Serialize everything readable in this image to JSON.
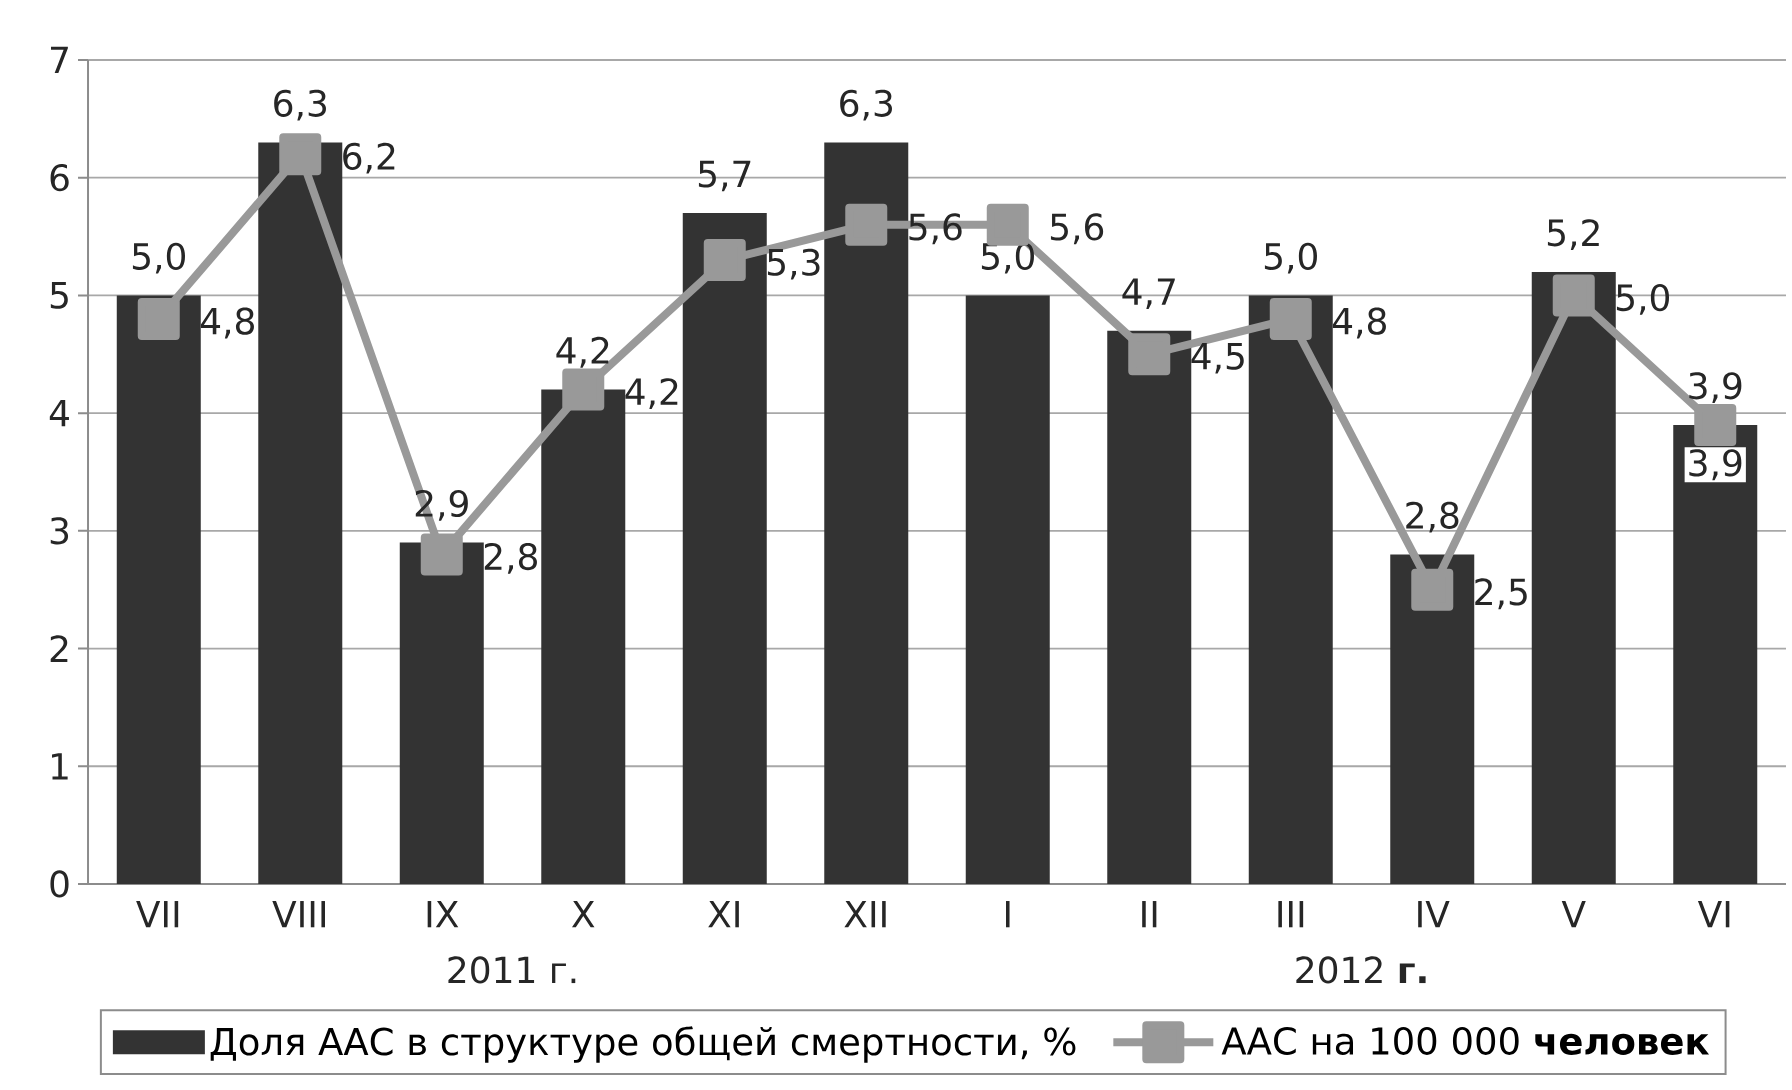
{
  "chart_data": {
    "type": "bar",
    "categories": [
      "VII",
      "VIII",
      "IX",
      "X",
      "XI",
      "XII",
      "I",
      "II",
      "III",
      "IV",
      "V",
      "VI"
    ],
    "series": [
      {
        "name": "Доля ААС в структуре общей смертности, %",
        "color": "#333333",
        "values": [
          5.0,
          6.3,
          2.9,
          4.2,
          5.7,
          6.3,
          5.0,
          4.7,
          5.0,
          2.8,
          5.2,
          3.9
        ],
        "value_labels": [
          "5,0",
          "6,3",
          "2,9",
          "4,2",
          "5,7",
          "6,3",
          "5,0",
          "4,7",
          "5,0",
          "2,8",
          "5,2",
          "3,9"
        ]
      },
      {
        "name": "ААС на 100 000 **человек**",
        "type": "line",
        "color": "#999999",
        "values": [
          4.8,
          6.2,
          2.8,
          4.2,
          5.3,
          5.6,
          5.6,
          4.5,
          4.8,
          2.5,
          5.0,
          3.9
        ],
        "value_labels": [
          "4,8",
          "6,2",
          "2,8",
          "4,2",
          "5,3",
          "5,6",
          "5,6",
          "4,5",
          "4,8",
          "2,5",
          "5,0",
          "3,9"
        ]
      }
    ],
    "ylim": [
      0,
      7
    ],
    "yticks": [
      0,
      1,
      2,
      3,
      4,
      5,
      6,
      7
    ],
    "grid": "y",
    "legend": "bottom",
    "marker": "square",
    "annotations": [
      "2011 г.",
      "2012 **г.**"
    ]
  }
}
